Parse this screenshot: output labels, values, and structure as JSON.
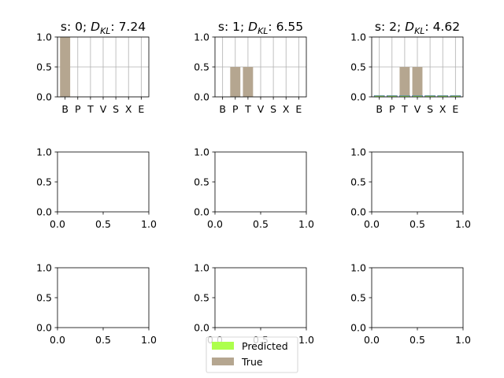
{
  "colors": {
    "true": "#b5a690",
    "predicted": "#adff4c",
    "grid": "#b0b0b0",
    "axis": "#000000",
    "predicted_edge": "#5a7fae"
  },
  "legend": {
    "placement": "lower-center",
    "items": [
      {
        "label": "Predicted",
        "color_key": "predicted"
      },
      {
        "label": "True",
        "color_key": "true"
      }
    ]
  },
  "chart_data": [
    {
      "type": "bar",
      "panel": "row1-col1",
      "title": "s: 0; ",
      "title_math": {
        "base": "D",
        "sub": "KL"
      },
      "title_value": ": 7.24",
      "categories": [
        "B",
        "P",
        "T",
        "V",
        "S",
        "X",
        "E"
      ],
      "series": [
        {
          "name": "True",
          "values": [
            1.0,
            0,
            0,
            0,
            0,
            0,
            0
          ]
        },
        {
          "name": "Predicted",
          "values": [
            0,
            0,
            0,
            0,
            0,
            0,
            0
          ]
        }
      ],
      "ylim": [
        0,
        1.0
      ],
      "yticks": [
        "0.0",
        "0.5",
        "1.0"
      ],
      "grid": true
    },
    {
      "type": "bar",
      "panel": "row1-col2",
      "title": "s: 1; ",
      "title_math": {
        "base": "D",
        "sub": "KL"
      },
      "title_value": ": 6.55",
      "categories": [
        "B",
        "P",
        "T",
        "V",
        "S",
        "X",
        "E"
      ],
      "series": [
        {
          "name": "True",
          "values": [
            0,
            0.5,
            0.5,
            0,
            0,
            0,
            0
          ]
        },
        {
          "name": "Predicted",
          "values": [
            0,
            0,
            0,
            0,
            0,
            0,
            0
          ]
        }
      ],
      "ylim": [
        0,
        1.0
      ],
      "yticks": [
        "0.0",
        "0.5",
        "1.0"
      ],
      "grid": true
    },
    {
      "type": "bar",
      "panel": "row1-col3",
      "title": "s: 2; ",
      "title_math": {
        "base": "D",
        "sub": "KL"
      },
      "title_value": ": 4.62",
      "categories": [
        "B",
        "P",
        "T",
        "V",
        "S",
        "X",
        "E"
      ],
      "series": [
        {
          "name": "True",
          "values": [
            0,
            0,
            0.5,
            0.5,
            0,
            0,
            0
          ]
        },
        {
          "name": "Predicted",
          "values": [
            0.01,
            0.01,
            0.01,
            0.01,
            0.01,
            0.01,
            0.01
          ]
        }
      ],
      "ylim": [
        0,
        1.0
      ],
      "yticks": [
        "0.0",
        "0.5",
        "1.0"
      ],
      "grid": true
    },
    {
      "type": "bar",
      "panel": "row2-col1",
      "empty": true,
      "xlim": [
        0,
        1.0
      ],
      "ylim": [
        0,
        1.0
      ],
      "xticks": [
        "0.0",
        "0.5",
        "1.0"
      ],
      "yticks": [
        "0.0",
        "0.5",
        "1.0"
      ]
    },
    {
      "type": "bar",
      "panel": "row2-col2",
      "empty": true,
      "xlim": [
        0,
        1.0
      ],
      "ylim": [
        0,
        1.0
      ],
      "xticks": [
        "0.0",
        "0.5",
        "1.0"
      ],
      "yticks": [
        "0.0",
        "0.5",
        "1.0"
      ]
    },
    {
      "type": "bar",
      "panel": "row2-col3",
      "empty": true,
      "xlim": [
        0,
        1.0
      ],
      "ylim": [
        0,
        1.0
      ],
      "xticks": [
        "0.0",
        "0.5",
        "1.0"
      ],
      "yticks": [
        "0.0",
        "0.5",
        "1.0"
      ]
    },
    {
      "type": "bar",
      "panel": "row3-col1",
      "empty": true,
      "xlim": [
        0,
        1.0
      ],
      "ylim": [
        0,
        1.0
      ],
      "xticks": [
        "0.0",
        "0.5",
        "1.0"
      ],
      "yticks": [
        "0.0",
        "0.5",
        "1.0"
      ]
    },
    {
      "type": "bar",
      "panel": "row3-col2",
      "empty": true,
      "xlim": [
        0,
        1.0
      ],
      "ylim": [
        0,
        1.0
      ],
      "xticks": [
        "0.0",
        "0.5",
        "1.0"
      ],
      "yticks": [
        "0.0",
        "0.5",
        "1.0"
      ]
    },
    {
      "type": "bar",
      "panel": "row3-col3",
      "empty": true,
      "xlim": [
        0,
        1.0
      ],
      "ylim": [
        0,
        1.0
      ],
      "xticks": [
        "0.0",
        "0.5",
        "1.0"
      ],
      "yticks": [
        "0.0",
        "0.5",
        "1.0"
      ]
    }
  ]
}
